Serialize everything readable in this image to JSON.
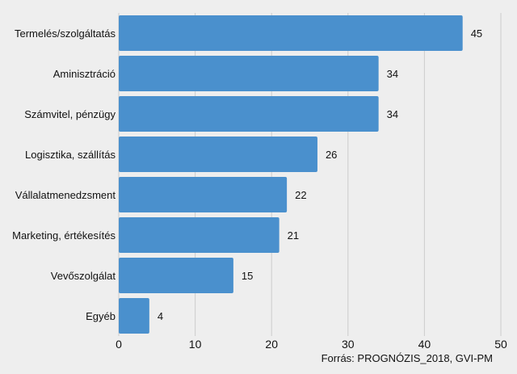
{
  "chart_data": {
    "type": "bar",
    "orientation": "horizontal",
    "categories": [
      "Termelés/szolgáltatás",
      "Aminisztráció",
      "Számvitel, pénzügy",
      "Logisztika, szállítás",
      "Vállalatmenedzsment",
      "Marketing, értékesítés",
      "Vevőszolgálat",
      "Egyéb"
    ],
    "values": [
      45,
      34,
      34,
      26,
      22,
      21,
      15,
      4
    ],
    "xlim": [
      0,
      50
    ],
    "xticks": [
      0,
      10,
      20,
      30,
      40,
      50
    ],
    "grid": "vertical",
    "bar_color": "#4a90cd",
    "background": "#eeeeee",
    "title": "",
    "xlabel": "",
    "ylabel": "",
    "source": "Forrás: PROGNÓZIS_2018, GVI-PM"
  }
}
